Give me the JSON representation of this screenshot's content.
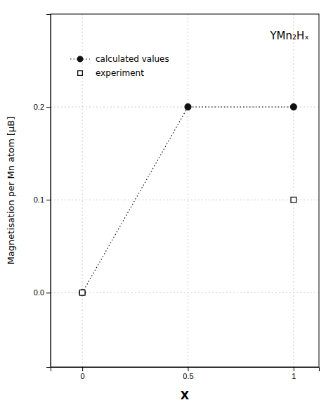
{
  "chart_data": {
    "type": "line",
    "xlabel": "X",
    "ylabel": "Magnetisation per Mn atom [μB]",
    "annotations": [
      "YMn₂Hₓ"
    ],
    "series": [
      {
        "name": "calculated values",
        "type": "line",
        "marker": "circle",
        "line_style": "dotted",
        "color": "#111111",
        "x": [
          0,
          0.5,
          1
        ],
        "values": [
          0.0,
          0.2,
          0.2
        ]
      },
      {
        "name": "experiment",
        "type": "scatter",
        "marker": "square",
        "color": "#111111",
        "x": [
          0,
          1
        ],
        "values": [
          0.0,
          0.1
        ]
      }
    ],
    "xlim": [
      -0.15,
      1.12
    ],
    "ylim": [
      -0.08,
      0.3
    ],
    "xticks": [
      0,
      0.5,
      1
    ],
    "yticks": [
      {
        "value": 0.0,
        "label": "0.0"
      },
      0.1,
      0.2
    ],
    "grid": true,
    "legend": "upper left"
  }
}
